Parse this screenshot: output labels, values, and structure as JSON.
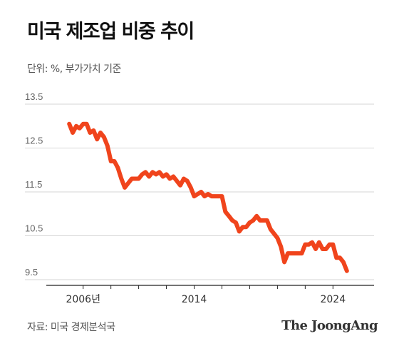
{
  "header": {
    "title": "미국 제조업 비중 추이",
    "subtitle": "단위: %, 부가가치 기준"
  },
  "footer": {
    "source": "자료: 미국 경제분석국",
    "brand": "The JoongAng"
  },
  "colors": {
    "line": "#f0441c",
    "grid": "#d6d6d6",
    "axis": "#222222"
  },
  "chart_data": {
    "type": "line",
    "ylim": [
      9.5,
      13.5
    ],
    "yticks": [
      13.5,
      12.5,
      11.5,
      10.5,
      9.5
    ],
    "yticklabels": [
      "13.5",
      "12.5",
      "11.5",
      "10.5",
      "9.5"
    ],
    "xlim": [
      2003.5,
      2026.5
    ],
    "xtick_minor": [
      2006,
      2008,
      2010,
      2012,
      2014,
      2016,
      2018,
      2020,
      2022,
      2024
    ],
    "xticklabels": [
      {
        "x": 2006,
        "label": "2006년"
      },
      {
        "x": 2014,
        "label": "2014"
      },
      {
        "x": 2024,
        "label": "2024"
      }
    ],
    "series": [
      {
        "x": [
          2005.0,
          2005.25,
          2005.5,
          2005.75,
          2006.0,
          2006.25,
          2006.5,
          2006.75,
          2007.0,
          2007.25,
          2007.5,
          2007.75,
          2008.0,
          2008.25,
          2008.5,
          2008.75,
          2009.0,
          2009.25,
          2009.5,
          2009.75,
          2010.0,
          2010.25,
          2010.5,
          2010.75,
          2011.0,
          2011.25,
          2011.5,
          2011.75,
          2012.0,
          2012.25,
          2012.5,
          2012.75,
          2013.0,
          2013.25,
          2013.5,
          2013.75,
          2014.0,
          2014.25,
          2014.5,
          2014.75,
          2015.0,
          2015.25,
          2015.5,
          2015.75,
          2016.0,
          2016.25,
          2016.5,
          2016.75,
          2017.0,
          2017.25,
          2017.5,
          2017.75,
          2018.0,
          2018.25,
          2018.5,
          2018.75,
          2019.0,
          2019.25,
          2019.5,
          2019.75,
          2020.0,
          2020.25,
          2020.5,
          2020.75,
          2021.0,
          2021.25,
          2021.5,
          2021.75,
          2022.0,
          2022.25,
          2022.5,
          2022.75,
          2023.0,
          2023.25,
          2023.5,
          2023.75,
          2024.0,
          2024.25,
          2024.5,
          2024.75,
          2025.0
        ],
        "values": [
          13.05,
          12.85,
          13.0,
          12.95,
          13.05,
          13.05,
          12.85,
          12.9,
          12.7,
          12.85,
          12.75,
          12.55,
          12.2,
          12.2,
          12.05,
          11.8,
          11.6,
          11.7,
          11.8,
          11.8,
          11.8,
          11.9,
          11.95,
          11.85,
          11.95,
          11.9,
          11.95,
          11.85,
          11.9,
          11.8,
          11.85,
          11.75,
          11.65,
          11.8,
          11.75,
          11.6,
          11.4,
          11.45,
          11.5,
          11.4,
          11.45,
          11.4,
          11.4,
          11.4,
          11.4,
          11.05,
          10.95,
          10.85,
          10.8,
          10.6,
          10.7,
          10.7,
          10.8,
          10.85,
          10.95,
          10.85,
          10.85,
          10.85,
          10.65,
          10.55,
          10.45,
          10.25,
          9.9,
          10.1,
          10.1,
          10.1,
          10.1,
          10.1,
          10.3,
          10.3,
          10.35,
          10.2,
          10.35,
          10.2,
          10.2,
          10.3,
          10.3,
          10.0,
          10.0,
          9.9,
          9.7
        ]
      }
    ]
  }
}
